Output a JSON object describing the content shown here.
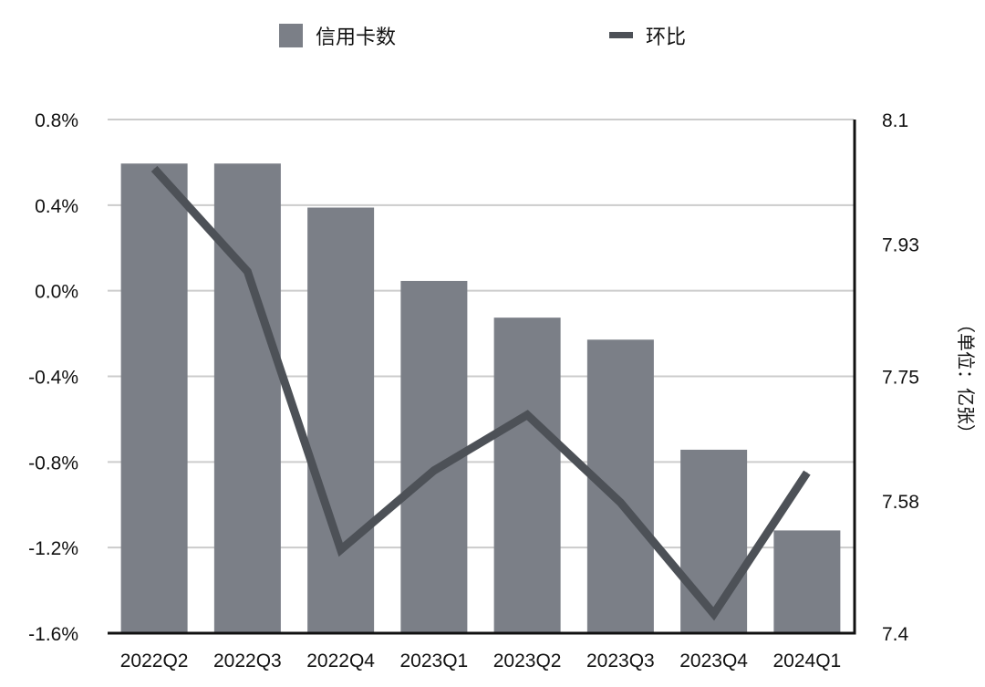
{
  "chart_data": {
    "type": "bar",
    "categories": [
      "2022Q2",
      "2022Q3",
      "2022Q4",
      "2023Q1",
      "2023Q2",
      "2023Q3",
      "2023Q4",
      "2024Q1"
    ],
    "series": [
      {
        "name": "信用卡数",
        "type": "bar",
        "axis": "right",
        "values": [
          8.04,
          8.04,
          7.98,
          7.88,
          7.83,
          7.8,
          7.65,
          7.54
        ]
      },
      {
        "name": "环比",
        "type": "line",
        "axis": "left",
        "values": [
          0.57,
          0.09,
          -1.21,
          -0.84,
          -0.58,
          -0.99,
          -1.51,
          -0.85
        ]
      }
    ],
    "y_left": {
      "ticks": [
        "0.8%",
        "0.4%",
        "0.0%",
        "-0.4%",
        "-0.8%",
        "-1.2%",
        "-1.6%"
      ],
      "ylim": [
        -1.6,
        0.8
      ]
    },
    "y_right": {
      "ticks": [
        "8.1",
        "7.93",
        "7.75",
        "7.58",
        "7.4"
      ],
      "ylim": [
        7.4,
        8.1
      ],
      "label": "（单位：亿张）"
    },
    "grid": true,
    "legend_position": "top",
    "colors": {
      "bar": "#7b7f87",
      "line": "#4d5157",
      "grid": "#cccccc",
      "axis": "#111111"
    }
  }
}
